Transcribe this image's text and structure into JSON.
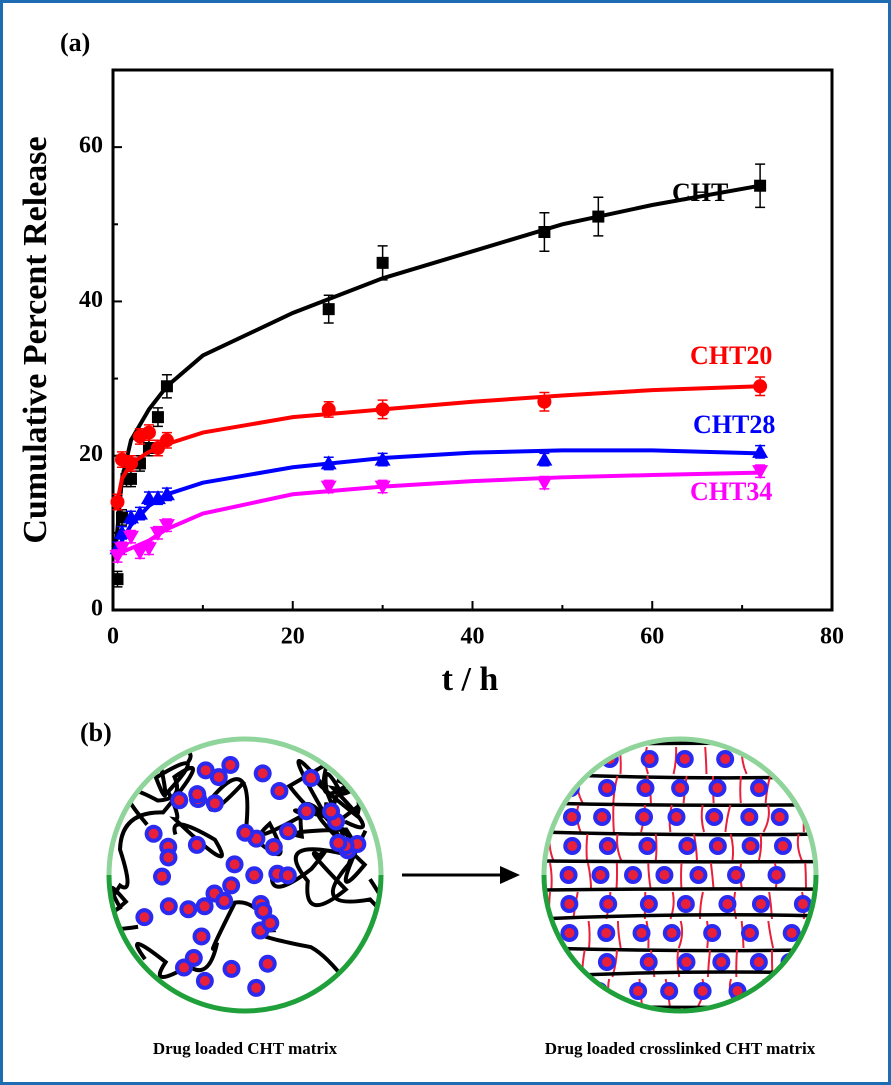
{
  "chart_data": {
    "type": "scatter",
    "panel_label": "(a)",
    "xlabel": "t / h",
    "ylabel": "Cumulative Percent Release",
    "xlim": [
      0,
      80
    ],
    "xticks": [
      0,
      20,
      40,
      60,
      80
    ],
    "xminorticks": [
      10,
      30,
      50,
      70
    ],
    "ylim": [
      0,
      70
    ],
    "yticks": [
      0,
      20,
      40,
      60
    ],
    "yminorticks": [
      10,
      30,
      50
    ],
    "fit_x": [
      0.3,
      1,
      2,
      4,
      6,
      10,
      20,
      30,
      40,
      50,
      60,
      72
    ],
    "series": [
      {
        "name": "CHT",
        "color": "#000000",
        "marker": "square",
        "x": [
          0.5,
          1,
          1.5,
          2,
          3,
          4,
          5,
          6,
          24,
          30,
          48,
          54,
          72
        ],
        "values": [
          4,
          12,
          17,
          17,
          19,
          21,
          25,
          29,
          39,
          45,
          49,
          51,
          55
        ],
        "errors": [
          1,
          1,
          1,
          1,
          1,
          1,
          1.2,
          1.5,
          1.8,
          2.2,
          2.5,
          2.5,
          2.8
        ],
        "fit": [
          8,
          17,
          22,
          26,
          29,
          33,
          38.5,
          43,
          46.5,
          50,
          52.5,
          55
        ]
      },
      {
        "name": "CHT20",
        "color": "#ff0000",
        "marker": "circle",
        "x": [
          0.5,
          1,
          2,
          3,
          4,
          5,
          6,
          24,
          30,
          48,
          72
        ],
        "values": [
          14,
          19.5,
          19,
          22.5,
          23,
          21,
          22,
          26,
          26,
          27,
          29
        ],
        "errors": [
          1,
          1,
          1,
          1,
          1,
          1,
          1,
          1,
          1.2,
          1.2,
          1.2
        ],
        "fit": [
          13,
          17,
          19,
          20.5,
          21.5,
          23,
          25,
          26,
          27,
          27.8,
          28.5,
          29
        ]
      },
      {
        "name": "CHT28",
        "color": "#0000ff",
        "marker": "triangle",
        "x": [
          0.5,
          1,
          2,
          3,
          4,
          5,
          6,
          24,
          30,
          48,
          72
        ],
        "values": [
          8,
          10,
          12,
          12.5,
          14.5,
          14.5,
          15,
          19,
          19.5,
          19.5,
          20.5
        ],
        "errors": [
          0.8,
          0.8,
          0.8,
          0.8,
          0.8,
          0.8,
          0.8,
          0.8,
          0.8,
          0.8,
          0.8
        ],
        "fit": [
          7,
          9,
          11,
          13.5,
          15,
          16.5,
          18.5,
          19.7,
          20.4,
          20.7,
          20.7,
          20.3
        ]
      },
      {
        "name": "CHT34",
        "color": "#ff00ff",
        "marker": "triangle-down",
        "x": [
          0.5,
          1,
          2,
          3,
          4,
          5,
          6,
          24,
          30,
          48,
          72
        ],
        "values": [
          7,
          8,
          9.5,
          7.5,
          8,
          10,
          11,
          16,
          16,
          16.5,
          18
        ],
        "errors": [
          0.8,
          0.8,
          0.8,
          0.8,
          0.8,
          0.8,
          0.8,
          0.8,
          0.8,
          0.8,
          0.8
        ],
        "fit": [
          7,
          7.5,
          8,
          9,
          10.5,
          12.5,
          15,
          16,
          16.7,
          17.2,
          17.5,
          17.8
        ]
      }
    ]
  },
  "diagram": {
    "panel_label": "(b)",
    "left_caption": "Drug loaded CHT matrix",
    "right_caption": "Drug loaded crosslinked CHT matrix"
  }
}
